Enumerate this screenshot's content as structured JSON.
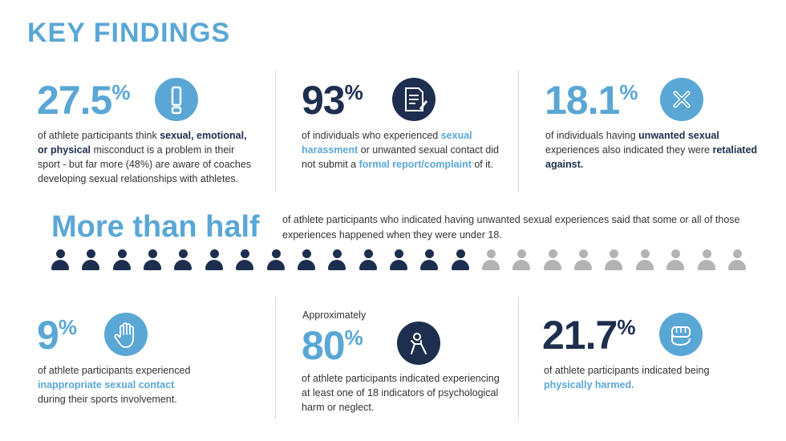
{
  "title": "KEY FINDINGS",
  "colors": {
    "accent": "#5aa7d6",
    "navy": "#1d2e4e",
    "grey": "#b3b3b3"
  },
  "stats": {
    "s1": {
      "pct": "27.5",
      "sym": "%",
      "icon": "exclamation-icon",
      "t1": "of athlete participants think ",
      "b1": "sexual, emotional, or physical",
      "t2": " misconduct is a problem in their sport - but far more (48%) are aware of coaches developing sexual relationships with athletes."
    },
    "s2": {
      "pct": "93",
      "sym": "%",
      "icon": "document-icon",
      "t1": "of individuals who experienced ",
      "h1": "sexual harassment",
      "t2": " or unwanted sexual contact did not submit a ",
      "h2": "formal report/complaint",
      "t3": " of it."
    },
    "s3": {
      "pct": "18.1",
      "sym": "%",
      "icon": "x-icon",
      "t1": "of individuals having ",
      "b1": "unwanted sexual",
      "t2": " experiences also indicated they were ",
      "b2": "retaliated against."
    },
    "s4": {
      "pct": "9",
      "sym": "%",
      "icon": "hand-icon",
      "t1": "of athlete participants experienced",
      "h1": "inappropriate sexual contact",
      "t2": "during their sports involvement."
    },
    "s5": {
      "pre": "Approximately",
      "pct": "80",
      "sym": "%",
      "icon": "sitting-person-icon",
      "t1": "of athlete participants indicated experiencing at least one of 18 indicators of psychological harm or neglect."
    },
    "s6": {
      "pct": "21.7",
      "sym": "%",
      "icon": "fist-icon",
      "t1": "of athlete participants indicated being",
      "h1": "physically harmed."
    }
  },
  "half": {
    "headline": "More than half",
    "text": "of athlete participants who indicated having unwanted sexual experiences said that some or all of those experiences happened when they were under 18.",
    "filled": 14,
    "total": 23
  }
}
